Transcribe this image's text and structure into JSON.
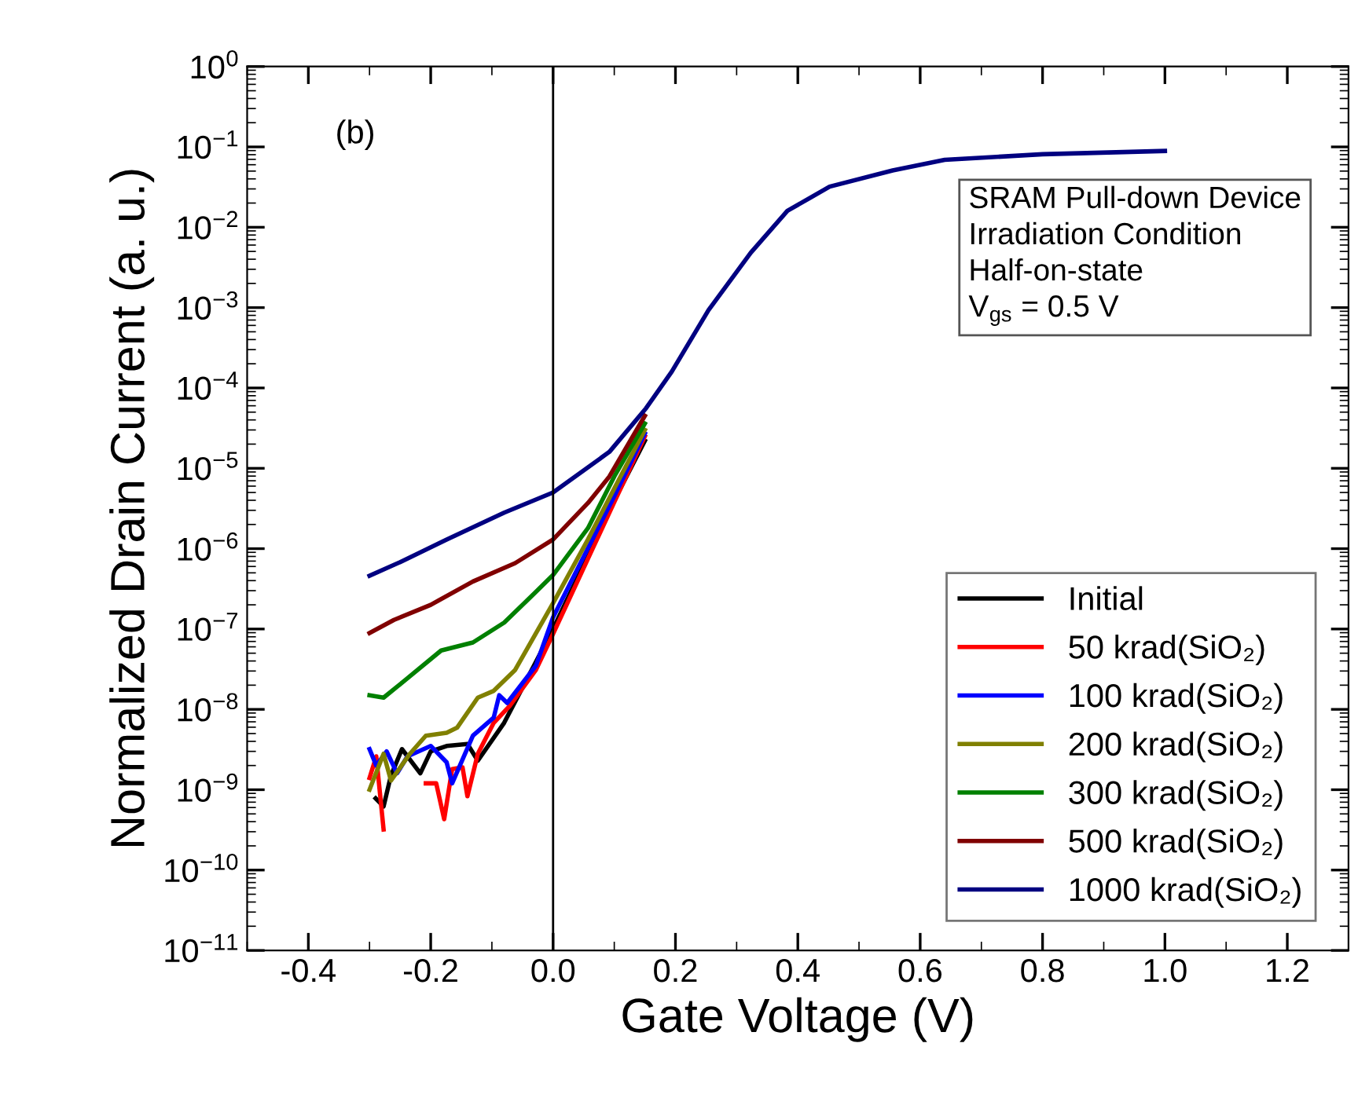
{
  "chart_data": {
    "type": "line",
    "xlabel": "Gate Voltage (V)",
    "ylabel": "Normalized Drain Current (a. u.)",
    "log": "y",
    "grid": false,
    "legend": "bottom right",
    "marker": "none",
    "line_style": "solid",
    "xlim": [
      -0.5,
      1.3
    ],
    "xticks": [
      -0.4,
      -0.2,
      {
        "value": 0.0,
        "label": "0.0"
      },
      0.2,
      0.4,
      0.6,
      0.8,
      {
        "value": 1.0,
        "label": "1.0"
      },
      1.2
    ],
    "ylim": [
      1e-11,
      1
    ],
    "yticks": [
      {
        "value": 1e-11,
        "label": "10$^{−11}$"
      },
      {
        "value": 1e-10,
        "label": "10$^{−10}$"
      },
      {
        "value": 1e-09,
        "label": "10$^{−9}$"
      },
      {
        "value": 1e-08,
        "label": "10$^{−8}$"
      },
      {
        "value": 1e-07,
        "label": "10$^{−7}$"
      },
      {
        "value": 1e-06,
        "label": "10$^{−6}$"
      },
      {
        "value": 1e-05,
        "label": "10$^{−5}$"
      },
      {
        "value": 0.0001,
        "label": "10$^{−4}$"
      },
      {
        "value": 0.001,
        "label": "10$^{−3}$"
      },
      {
        "value": 0.01,
        "label": "10$^{−2}$"
      },
      {
        "value": 0.1,
        "label": "10$^{−1}$"
      },
      {
        "value": 1,
        "label": "10$^{0}$"
      }
    ],
    "ref_lines": [
      {
        "axis": "x",
        "value": 0,
        "color": "#000000",
        "line_style": "solid"
      }
    ],
    "annotations": [
      "(b)",
      "SRAM Pull-down Device\nIrradiation Condition\nHalf-on-state\nV$_{gs}$ = 0.5 V"
    ],
    "series": [
      {
        "name": "Initial",
        "color": "#000000",
        "x": [
          -0.29,
          -0.277,
          -0.265,
          -0.247,
          -0.217,
          -0.2,
          -0.174,
          -0.14,
          -0.123,
          -0.08,
          0,
          0.1,
          0.15
        ],
        "values": [
          7.8e-10,
          6.2e-10,
          1.5e-09,
          3.2e-09,
          1.6e-09,
          3e-09,
          3.5e-09,
          3.7e-09,
          2.3e-09,
          6.8e-09,
          1e-07,
          4e-06,
          2.2e-05
        ]
      },
      {
        "name": "50 krad(SiO₂)",
        "color": "#ff0000",
        "x": [
          -0.3,
          -0.289,
          -0.277,
          -0.245,
          -0.208,
          -0.191,
          -0.178,
          -0.165,
          -0.148,
          -0.14,
          -0.123,
          -0.097,
          -0.071,
          -0.028,
          0,
          0.1,
          0.15
        ],
        "values": [
          1.4e-09,
          2.6e-09,
          3.2e-10,
          null,
          1.2e-09,
          1.2e-09,
          4.3e-10,
          1.8e-09,
          1.9e-09,
          8.3e-10,
          2.8e-09,
          6.8e-09,
          1.1e-08,
          3.1e-08,
          8.7e-08,
          3.8e-06,
          2.5e-05
        ]
      },
      {
        "name": "100 krad(SiO₂)",
        "color": "#0000ff",
        "x": [
          -0.3,
          -0.289,
          -0.272,
          -0.255,
          -0.238,
          -0.2,
          -0.174,
          -0.165,
          -0.131,
          -0.097,
          -0.088,
          -0.075,
          -0.028,
          0,
          0.1,
          0.15
        ],
        "values": [
          3.2e-09,
          2e-09,
          3e-09,
          1.6e-09,
          2.6e-09,
          3.5e-09,
          2.2e-09,
          1.2e-09,
          4.7e-09,
          7.9e-09,
          1.5e-08,
          1.2e-08,
          3.5e-08,
          1.4e-07,
          4.5e-06,
          2.7e-05
        ]
      },
      {
        "name": "200 krad(SiO₂)",
        "color": "#808000",
        "x": [
          -0.3,
          -0.277,
          -0.265,
          -0.234,
          -0.208,
          -0.174,
          -0.157,
          -0.123,
          -0.097,
          -0.062,
          0,
          0.057,
          0.1,
          0.15
        ],
        "values": [
          1e-09,
          2.8e-09,
          1.3e-09,
          2.8e-09,
          4.7e-09,
          5.1e-09,
          5.9e-09,
          1.4e-08,
          1.7e-08,
          3.1e-08,
          2.1e-07,
          1.3e-06,
          5.6e-06,
          3e-05
        ]
      },
      {
        "name": "300 krad(SiO₂)",
        "color": "#008000",
        "x": [
          -0.3,
          -0.277,
          -0.242,
          -0.183,
          -0.131,
          -0.08,
          -0.028,
          0,
          0.057,
          0.1,
          0.15
        ],
        "values": [
          1.5e-08,
          1.4e-08,
          2.3e-08,
          5.4e-08,
          6.8e-08,
          1.2e-07,
          2.9e-07,
          4.7e-07,
          1.8e-06,
          7.9e-06,
          3.6e-05
        ]
      },
      {
        "name": "500 krad(SiO₂)",
        "color": "#800000",
        "x": [
          -0.3,
          -0.26,
          -0.2,
          -0.131,
          -0.062,
          0,
          0.057,
          0.092,
          0.15
        ],
        "values": [
          8.9e-08,
          1.3e-07,
          2e-07,
          3.9e-07,
          6.6e-07,
          1.3e-06,
          3.7e-06,
          7.9e-06,
          4.5e-05
        ]
      },
      {
        "name": "1000 krad(SiO₂)",
        "color": "#000080",
        "x": [
          -0.3,
          -0.25,
          -0.174,
          -0.08,
          0,
          0.092,
          0.152,
          0.194,
          0.254,
          0.323,
          0.383,
          0.452,
          0.555,
          0.64,
          0.8,
          1.0
        ],
        "values": [
          4.6e-07,
          6.8e-07,
          1.3e-06,
          2.8e-06,
          5e-06,
          1.6e-05,
          5.6e-05,
          0.00016,
          0.00093,
          0.0048,
          0.016,
          0.032,
          0.051,
          0.069,
          0.081,
          0.089
        ]
      }
    ]
  }
}
